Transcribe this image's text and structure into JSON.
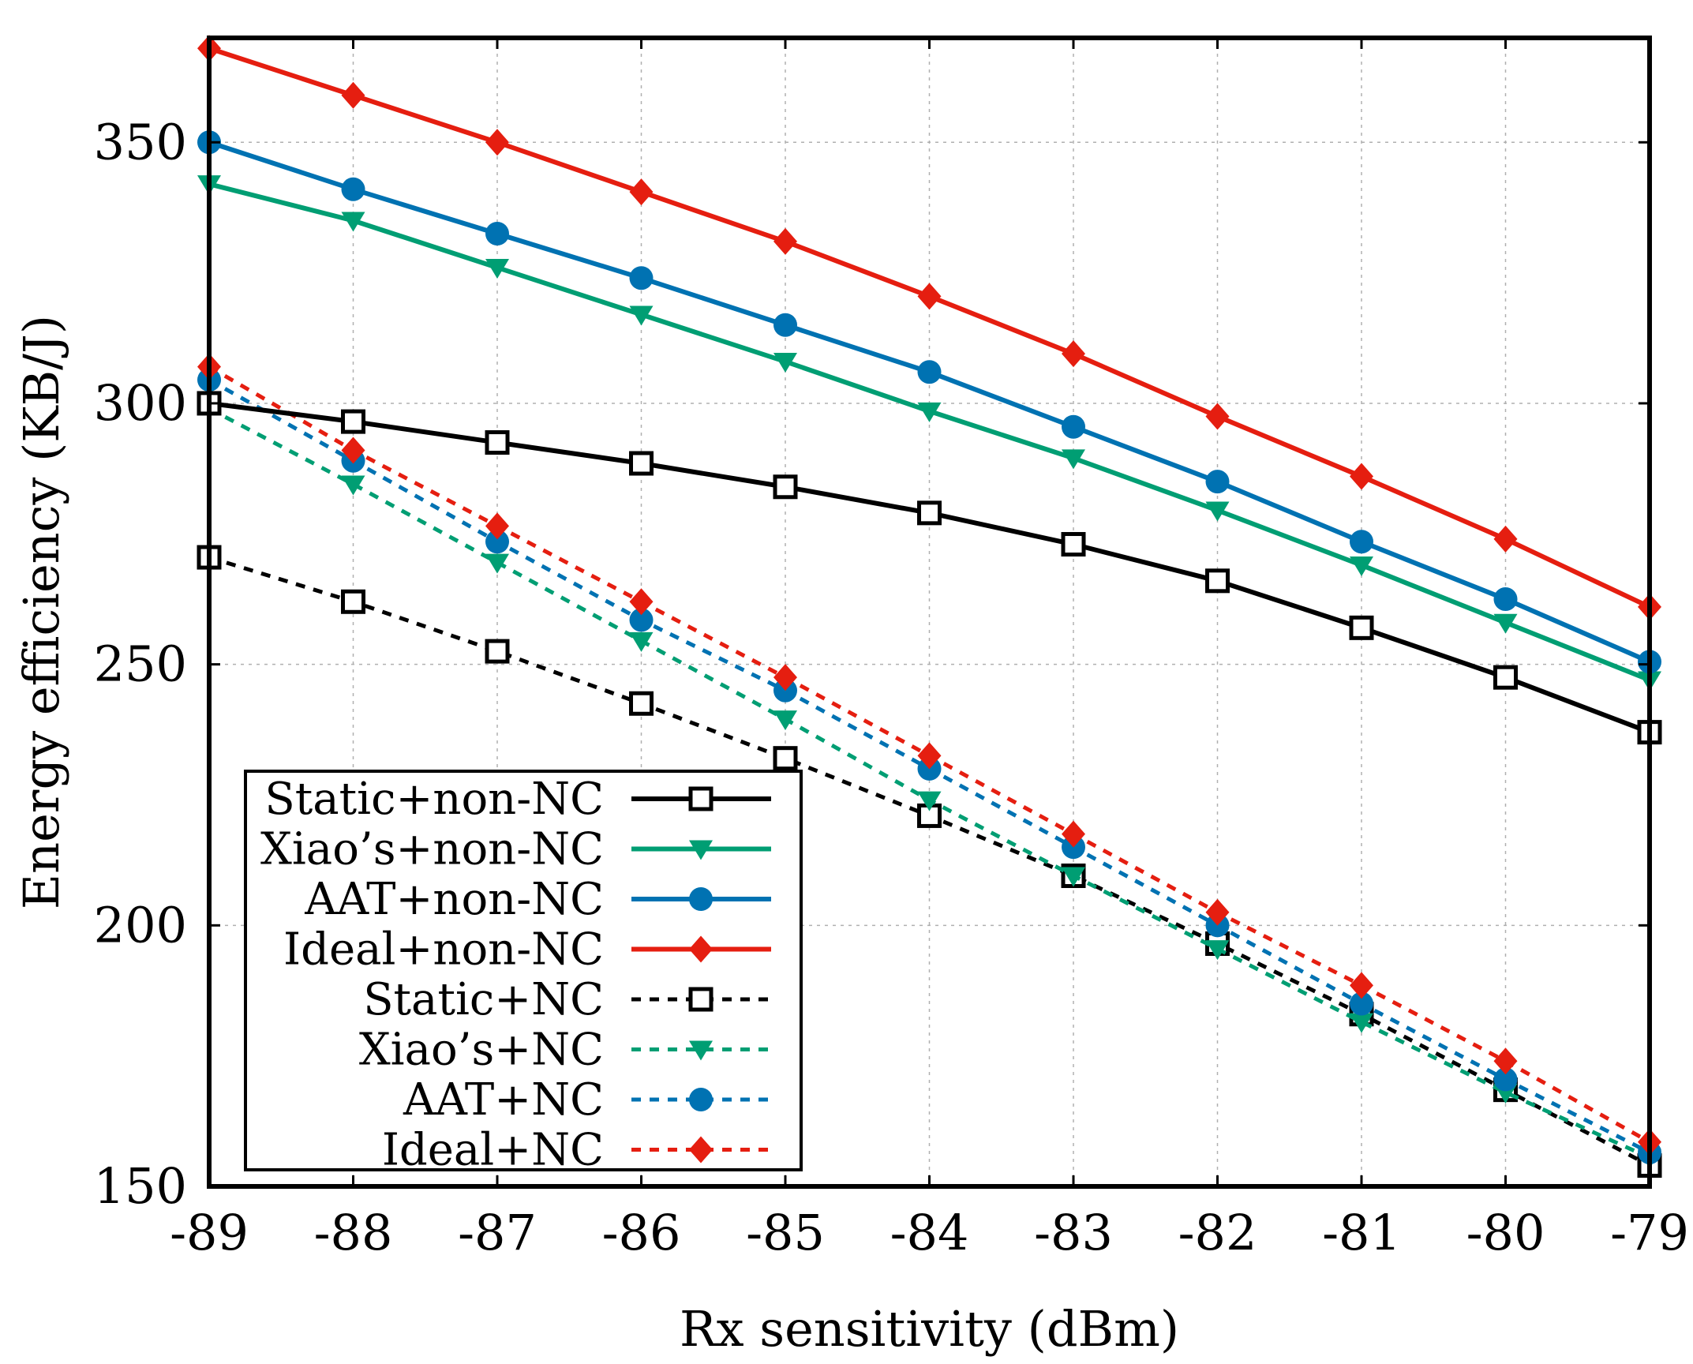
{
  "chart_data": {
    "type": "line",
    "title": "",
    "xlabel": "Rx sensitivity (dBm)",
    "ylabel": "Energy efficiency (KB/J)",
    "xlim": [
      -89,
      -79
    ],
    "ylim": [
      150,
      370
    ],
    "x": [
      -89,
      -88,
      -87,
      -86,
      -85,
      -84,
      -83,
      -82,
      -81,
      -80,
      -79
    ],
    "x_tick_labels": [
      "-89",
      "-88",
      "-87",
      "-86",
      "-85",
      "-84",
      "-83",
      "-82",
      "-81",
      "-80",
      "-79"
    ],
    "y_ticks": [
      150,
      200,
      250,
      300,
      350
    ],
    "y_tick_labels": [
      "150",
      "200",
      "250",
      "300",
      "350"
    ],
    "grid": true,
    "legend_position": "bottom-left",
    "series": [
      {
        "name": "Static+non-NC",
        "color": "#000000",
        "style": "solid",
        "marker": "open-square",
        "values": [
          300,
          296.5,
          292.5,
          288.5,
          284,
          279,
          273,
          266,
          257,
          247.5,
          237
        ]
      },
      {
        "name": "Xiao’s+non-NC",
        "color": "#009e73",
        "style": "solid",
        "marker": "triangle-down",
        "values": [
          342,
          335,
          326,
          317,
          308,
          298.5,
          289.5,
          279.5,
          269,
          258,
          247
        ]
      },
      {
        "name": "AAT+non-NC",
        "color": "#0072b2",
        "style": "solid",
        "marker": "circle",
        "values": [
          350,
          341,
          332.5,
          324,
          315,
          306,
          295.5,
          285,
          273.5,
          262.5,
          250.5
        ]
      },
      {
        "name": "Ideal+non-NC",
        "color": "#e51e10",
        "style": "solid",
        "marker": "diamond",
        "values": [
          368,
          359,
          350,
          340.5,
          331,
          320.5,
          309.5,
          297.5,
          286,
          274,
          261
        ]
      },
      {
        "name": "Static+NC",
        "color": "#000000",
        "style": "dashed",
        "marker": "open-square",
        "values": [
          270.5,
          262,
          252.5,
          242.5,
          232,
          221,
          209.5,
          196.5,
          183,
          168.5,
          154
        ]
      },
      {
        "name": "Xiao’s+NC",
        "color": "#009e73",
        "style": "dashed",
        "marker": "triangle-down",
        "values": [
          299,
          284.5,
          269.5,
          254.5,
          239.5,
          224,
          209.5,
          195.5,
          181.5,
          168,
          155.5
        ]
      },
      {
        "name": "AAT+NC",
        "color": "#0072b2",
        "style": "dashed",
        "marker": "circle",
        "values": [
          304.5,
          289,
          273.5,
          258.5,
          245,
          230,
          215,
          200,
          185,
          170.5,
          156.5
        ]
      },
      {
        "name": "Ideal+NC",
        "color": "#e51e10",
        "style": "dashed",
        "marker": "diamond",
        "values": [
          307,
          291,
          276.5,
          262,
          247.5,
          232.5,
          217.5,
          202.5,
          188.5,
          174,
          158.5
        ]
      }
    ]
  }
}
